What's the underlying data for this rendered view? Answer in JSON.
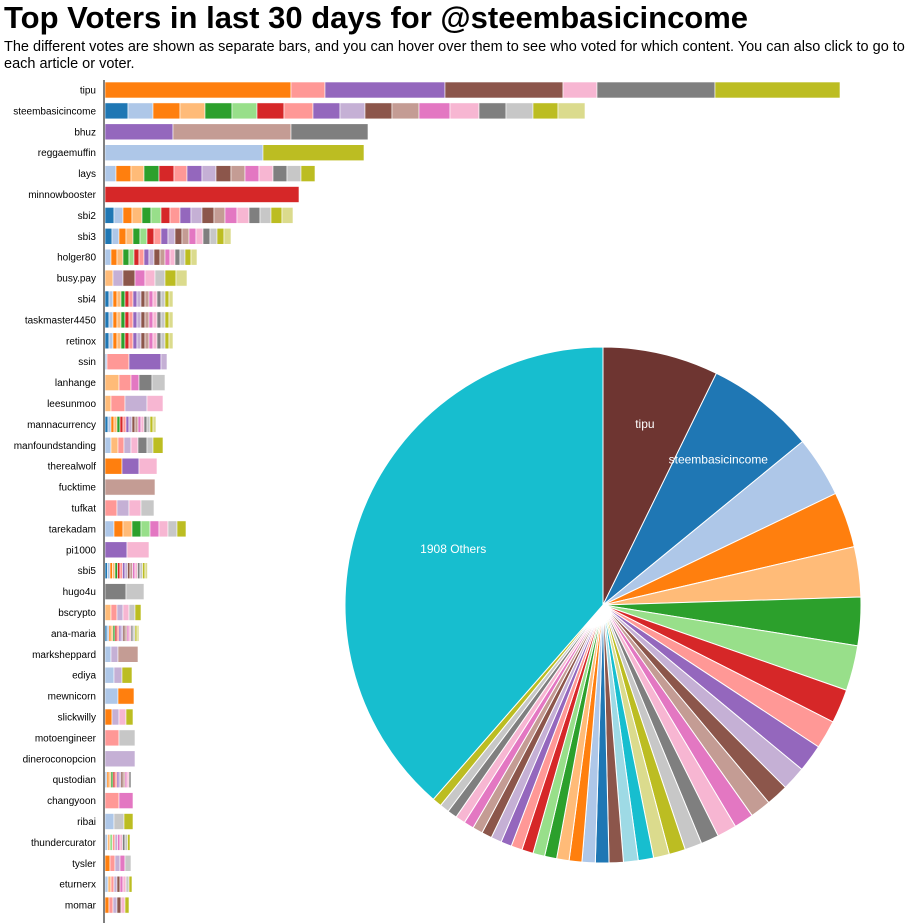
{
  "title": "Top Voters in last 30 days for @steembasicincome",
  "subtitle": "The different votes are shown as separate bars, and you can hover over them to see who voted for which content. You can also click to go to each article or voter.",
  "palette": [
    "#1f77b4",
    "#aec7e8",
    "#ff7f0e",
    "#ffbb78",
    "#2ca02c",
    "#98df8a",
    "#d62728",
    "#ff9896",
    "#9467bd",
    "#c5b0d5",
    "#8c564b",
    "#c49c94",
    "#e377c2",
    "#f7b6d2",
    "#7f7f7f",
    "#c7c7c7",
    "#bcbd22",
    "#dbdb8d",
    "#17becf",
    "#9edae5"
  ],
  "chart_data": [
    {
      "type": "bar",
      "name": "voters",
      "categories": [
        "tipu",
        "steembasicincome",
        "bhuz",
        "reggaemuffin",
        "lays",
        "minnowbooster",
        "sbi2",
        "sbi3",
        "holger80",
        "busy.pay",
        "sbi4",
        "taskmaster4450",
        "retinox",
        "ssin",
        "lanhange",
        "leesunmoo",
        "mannacurrency",
        "manfoundstanding",
        "therealwolf",
        "fucktime",
        "tufkat",
        "tarekadam",
        "pi1000",
        "sbi5",
        "hugo4u",
        "bscrypto",
        "ana-maria",
        "marksheppard",
        "ediya",
        "mewnicorn",
        "slickwilly",
        "motoengineer",
        "dineroconopcion",
        "qustodian",
        "changyoon",
        "ribai",
        "thundercurator",
        "tysler",
        "eturnerx",
        "momar"
      ],
      "stacks": [
        {
          "colors": [
            2,
            7,
            8,
            10,
            13,
            14,
            16
          ],
          "values": [
            186,
            34,
            120,
            118,
            34,
            118,
            125
          ]
        },
        {
          "colors": [
            0,
            1,
            2,
            3,
            4,
            5,
            6,
            7,
            8,
            9,
            10,
            11,
            12,
            13,
            14,
            15,
            16,
            17
          ],
          "values": [
            23,
            25,
            27,
            25,
            27,
            25,
            27,
            29,
            27,
            25,
            27,
            27,
            31,
            29,
            27,
            27,
            25,
            27
          ]
        },
        {
          "colors": [
            8,
            11,
            14
          ],
          "values": [
            68,
            118,
            77
          ]
        },
        {
          "colors": [
            1,
            16
          ],
          "values": [
            158,
            101
          ]
        },
        {
          "colors": [
            1,
            2,
            3,
            4,
            6,
            7,
            8,
            9,
            10,
            11,
            12,
            13,
            14,
            15,
            16
          ],
          "values": [
            11,
            15,
            13,
            15,
            15,
            13,
            15,
            14,
            15,
            14,
            14,
            14,
            14,
            14,
            14
          ]
        },
        {
          "colors": [
            6
          ],
          "values": [
            194
          ]
        },
        {
          "colors": [
            0,
            1,
            2,
            3,
            4,
            5,
            6,
            7,
            8,
            9,
            10,
            11,
            12,
            13,
            14,
            15,
            16,
            17
          ],
          "values": [
            9,
            9,
            9,
            10,
            9,
            10,
            9,
            10,
            11,
            11,
            12,
            11,
            12,
            12,
            11,
            11,
            11,
            11
          ]
        },
        {
          "colors": [
            0,
            1,
            2,
            3,
            4,
            5,
            6,
            7,
            8,
            9,
            10,
            11,
            12,
            13,
            14,
            15,
            16,
            17
          ],
          "values": [
            7,
            7,
            7,
            7,
            7,
            7,
            7,
            7,
            7,
            7,
            7,
            7,
            7,
            7,
            7,
            7,
            7,
            7
          ]
        },
        {
          "colors": [
            1,
            2,
            3,
            4,
            5,
            6,
            7,
            8,
            9,
            10,
            11,
            12,
            13,
            14,
            15,
            16,
            17
          ],
          "values": [
            6,
            6,
            6,
            6,
            5,
            5,
            5,
            5,
            5,
            6,
            5,
            5,
            5,
            5,
            5,
            6,
            6
          ]
        },
        {
          "colors": [
            3,
            9,
            10,
            12,
            13,
            15,
            16,
            17
          ],
          "values": [
            8,
            10,
            12,
            10,
            10,
            10,
            11,
            11
          ]
        },
        {
          "colors": [
            0,
            1,
            2,
            3,
            4,
            6,
            7,
            8,
            9,
            10,
            11,
            12,
            13,
            14,
            15,
            16,
            17
          ],
          "values": [
            4,
            4,
            4,
            4,
            4,
            4,
            4,
            4,
            4,
            4,
            4,
            4,
            4,
            4,
            4,
            4,
            4
          ]
        },
        {
          "colors": [
            0,
            1,
            2,
            3,
            4,
            6,
            7,
            8,
            9,
            10,
            11,
            12,
            13,
            14,
            15,
            16,
            17
          ],
          "values": [
            4,
            4,
            4,
            4,
            4,
            4,
            4,
            4,
            4,
            4,
            4,
            4,
            4,
            4,
            4,
            4,
            4
          ]
        },
        {
          "colors": [
            0,
            1,
            2,
            3,
            4,
            6,
            7,
            8,
            9,
            10,
            11,
            12,
            13,
            14,
            15,
            16,
            17
          ],
          "values": [
            4,
            4,
            4,
            4,
            4,
            4,
            4,
            4,
            4,
            4,
            4,
            4,
            4,
            4,
            4,
            4,
            4
          ]
        },
        {
          "colors": [
            1,
            7,
            8,
            9
          ],
          "values": [
            2,
            22,
            32,
            6
          ]
        },
        {
          "colors": [
            3,
            7,
            12,
            14,
            15
          ],
          "values": [
            14,
            12,
            8,
            13,
            13
          ]
        },
        {
          "colors": [
            3,
            7,
            9,
            13
          ],
          "values": [
            6,
            14,
            22,
            16
          ]
        },
        {
          "colors": [
            0,
            1,
            2,
            3,
            4,
            6,
            7,
            8,
            9,
            10,
            11,
            12,
            13,
            14,
            15,
            16,
            17
          ],
          "values": [
            3,
            3,
            3,
            3,
            3,
            3,
            3,
            3,
            3,
            3,
            3,
            3,
            3,
            3,
            3,
            3,
            3
          ]
        },
        {
          "colors": [
            1,
            3,
            7,
            9,
            13,
            14,
            15,
            16
          ],
          "values": [
            6,
            7,
            6,
            7,
            7,
            9,
            6,
            10
          ]
        },
        {
          "colors": [
            2,
            8,
            13
          ],
          "values": [
            17,
            17,
            18
          ]
        },
        {
          "colors": [
            11
          ],
          "values": [
            50
          ]
        },
        {
          "colors": [
            7,
            9,
            13,
            15
          ],
          "values": [
            12,
            12,
            12,
            13
          ]
        },
        {
          "colors": [
            1,
            2,
            3,
            4,
            5,
            12,
            13,
            15,
            16
          ],
          "values": [
            9,
            9,
            9,
            9,
            9,
            9,
            9,
            9,
            9
          ]
        },
        {
          "colors": [
            8,
            13
          ],
          "values": [
            22,
            22
          ]
        },
        {
          "colors": [
            0,
            1,
            2,
            3,
            4,
            6,
            7,
            8,
            9,
            10,
            11,
            12,
            13,
            14,
            15,
            16,
            17
          ],
          "values": [
            2.5,
            2.5,
            2.5,
            2.5,
            2.5,
            2.5,
            2.5,
            2.5,
            2.5,
            2.5,
            2.5,
            2.5,
            2.5,
            2.5,
            2.5,
            2.5,
            2.5
          ]
        },
        {
          "colors": [
            14,
            15
          ],
          "values": [
            21,
            18
          ]
        },
        {
          "colors": [
            3,
            7,
            9,
            13,
            15,
            16
          ],
          "values": [
            6,
            6,
            6,
            6,
            6,
            6
          ]
        },
        {
          "colors": [
            0,
            1,
            2,
            3,
            4,
            6,
            7,
            8,
            9,
            10,
            11,
            12,
            13,
            14,
            15,
            16,
            17
          ],
          "values": [
            2,
            2,
            2,
            2,
            2,
            2,
            2,
            2,
            2,
            2,
            2,
            2,
            2,
            2,
            2,
            2,
            2
          ]
        },
        {
          "colors": [
            1,
            9,
            11
          ],
          "values": [
            6,
            7,
            20
          ]
        },
        {
          "colors": [
            1,
            9,
            16
          ],
          "values": [
            9,
            8,
            10
          ]
        },
        {
          "colors": [
            1,
            2
          ],
          "values": [
            13,
            16
          ]
        },
        {
          "colors": [
            2,
            9,
            13,
            16
          ],
          "values": [
            7,
            7,
            7,
            7
          ]
        },
        {
          "colors": [
            7,
            15
          ],
          "values": [
            14,
            16
          ]
        },
        {
          "colors": [
            9
          ],
          "values": [
            30
          ]
        },
        {
          "colors": [
            1,
            2,
            3,
            4,
            6,
            7,
            8,
            9,
            10,
            11,
            12,
            13,
            14
          ],
          "values": [
            2,
            2,
            2,
            2,
            2,
            2,
            2,
            2,
            2,
            2,
            2,
            2,
            2
          ]
        },
        {
          "colors": [
            7,
            12
          ],
          "values": [
            14,
            14
          ]
        },
        {
          "colors": [
            1,
            15,
            16
          ],
          "values": [
            9,
            10,
            9
          ]
        },
        {
          "colors": [
            1,
            3,
            5,
            7,
            9,
            12,
            13,
            14,
            15,
            16
          ],
          "values": [
            2.5,
            2.5,
            2.5,
            2.5,
            2.5,
            2.5,
            2.5,
            2.5,
            2.5,
            2.5
          ]
        },
        {
          "colors": [
            2,
            7,
            9,
            12,
            15
          ],
          "values": [
            5,
            5,
            5,
            5,
            6
          ]
        },
        {
          "colors": [
            1,
            3,
            7,
            9,
            10,
            12,
            13,
            15,
            16
          ],
          "values": [
            3,
            3,
            3,
            3,
            3,
            3,
            3,
            3,
            3
          ]
        },
        {
          "colors": [
            2,
            7,
            9,
            10,
            13,
            16
          ],
          "values": [
            4,
            4,
            4,
            4,
            4,
            4
          ]
        }
      ]
    },
    {
      "type": "pie",
      "name": "vote-share",
      "slices": [
        {
          "label": "tipu",
          "value": 7.08,
          "color": "#6e3531"
        },
        {
          "label": "steembasicincome",
          "value": 6.68,
          "color": "#1f77b4"
        },
        {
          "label": "",
          "value": 3.72,
          "color": "#aec7e8"
        },
        {
          "label": "",
          "value": 3.4,
          "color": "#ff7f0e"
        },
        {
          "label": "",
          "value": 3.07,
          "color": "#ffbb78"
        },
        {
          "label": "",
          "value": 2.96,
          "color": "#2ca02c"
        },
        {
          "label": "",
          "value": 2.76,
          "color": "#98df8a"
        },
        {
          "label": "",
          "value": 2.08,
          "color": "#d62728"
        },
        {
          "label": "",
          "value": 1.74,
          "color": "#ff9896"
        },
        {
          "label": "",
          "value": 1.69,
          "color": "#9467bd"
        },
        {
          "label": "",
          "value": 1.47,
          "color": "#c5b0d5"
        },
        {
          "label": "",
          "value": 1.36,
          "color": "#8c564b"
        },
        {
          "label": "",
          "value": 1.27,
          "color": "#c49c94"
        },
        {
          "label": "",
          "value": 1.2,
          "color": "#e377c2"
        },
        {
          "label": "",
          "value": 1.19,
          "color": "#f7b6d2"
        },
        {
          "label": "",
          "value": 1.1,
          "color": "#7f7f7f"
        },
        {
          "label": "",
          "value": 1.05,
          "color": "#c7c7c7"
        },
        {
          "label": "",
          "value": 1.0,
          "color": "#bcbd22"
        },
        {
          "label": "",
          "value": 0.97,
          "color": "#dbdb8d"
        },
        {
          "label": "",
          "value": 0.94,
          "color": "#17becf"
        },
        {
          "label": "",
          "value": 0.9,
          "color": "#9edae5"
        },
        {
          "label": "",
          "value": 0.87,
          "color": "#8c564b"
        },
        {
          "label": "",
          "value": 0.83,
          "color": "#1f77b4"
        },
        {
          "label": "",
          "value": 0.81,
          "color": "#aec7e8"
        },
        {
          "label": "",
          "value": 0.78,
          "color": "#ff7f0e"
        },
        {
          "label": "",
          "value": 0.76,
          "color": "#ffbb78"
        },
        {
          "label": "",
          "value": 0.74,
          "color": "#2ca02c"
        },
        {
          "label": "",
          "value": 0.72,
          "color": "#98df8a"
        },
        {
          "label": "",
          "value": 0.7,
          "color": "#d62728"
        },
        {
          "label": "",
          "value": 0.68,
          "color": "#ff9896"
        },
        {
          "label": "",
          "value": 0.66,
          "color": "#9467bd"
        },
        {
          "label": "",
          "value": 0.65,
          "color": "#c5b0d5"
        },
        {
          "label": "",
          "value": 0.63,
          "color": "#8c564b"
        },
        {
          "label": "",
          "value": 0.62,
          "color": "#c49c94"
        },
        {
          "label": "",
          "value": 0.61,
          "color": "#e377c2"
        },
        {
          "label": "",
          "value": 0.6,
          "color": "#f7b6d2"
        },
        {
          "label": "",
          "value": 0.59,
          "color": "#7f7f7f"
        },
        {
          "label": "",
          "value": 0.58,
          "color": "#c7c7c7"
        },
        {
          "label": "",
          "value": 0.57,
          "color": "#bcbd22"
        },
        {
          "label": "1908 Others",
          "value": 37.7,
          "color": "#17becf"
        }
      ]
    }
  ]
}
